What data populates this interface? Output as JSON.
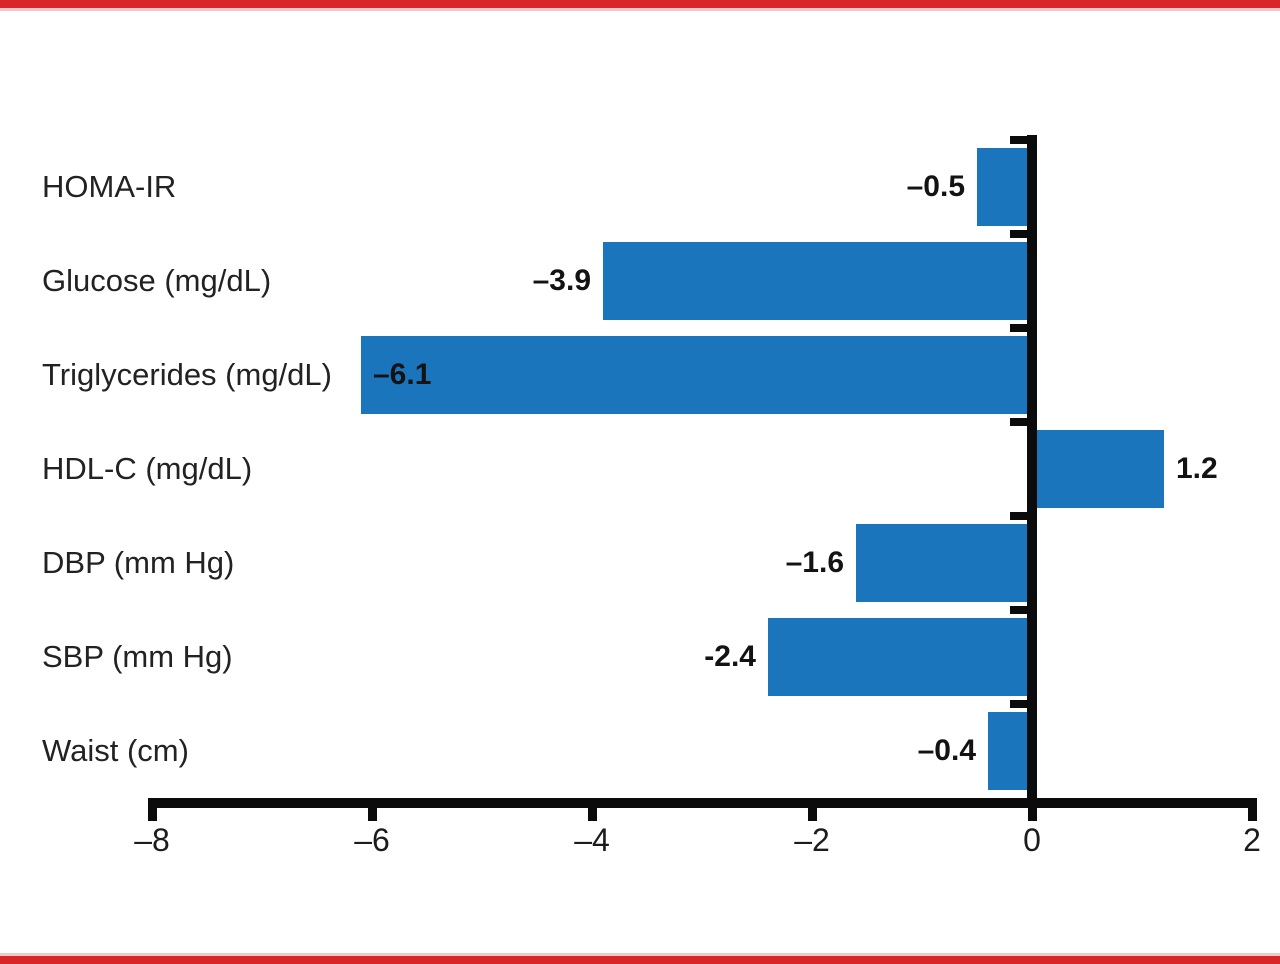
{
  "figure": {
    "accent_rule_color": "#d92428",
    "accent_rule_light_color": "#f2c5c7",
    "background_color": "#ffffff"
  },
  "chart_data": {
    "type": "bar",
    "orientation": "horizontal",
    "title": "",
    "xlabel": "",
    "ylabel": "",
    "categories": [
      "HOMA-IR",
      "Glucose (mg/dL)",
      "Triglycerides (mg/dL)",
      "HDL-C (mg/dL)",
      "DBP (mm Hg)",
      "SBP (mm Hg)",
      "Waist (cm)"
    ],
    "values": [
      -0.5,
      -3.9,
      -6.1,
      1.2,
      -1.6,
      -2.4,
      -0.4
    ],
    "value_labels": [
      "–0.5",
      "–3.9",
      "–6.1",
      "1.2",
      "–1.6",
      "-2.4",
      "–0.4"
    ],
    "value_label_placement": [
      "outside-start",
      "outside-start",
      "inside-start",
      "outside-end",
      "outside-start",
      "outside-start",
      "outside-start"
    ],
    "bar_color": "#1b75bc",
    "axis_color": "#0b0b0b",
    "text_color": "#222222",
    "xlim": [
      -8,
      2
    ],
    "xticks": [
      -8,
      -6,
      -4,
      -2,
      0,
      2
    ],
    "xtick_labels": [
      "–8",
      "–6",
      "–4",
      "–2",
      "0",
      "2"
    ],
    "grid": false,
    "legend": null
  }
}
